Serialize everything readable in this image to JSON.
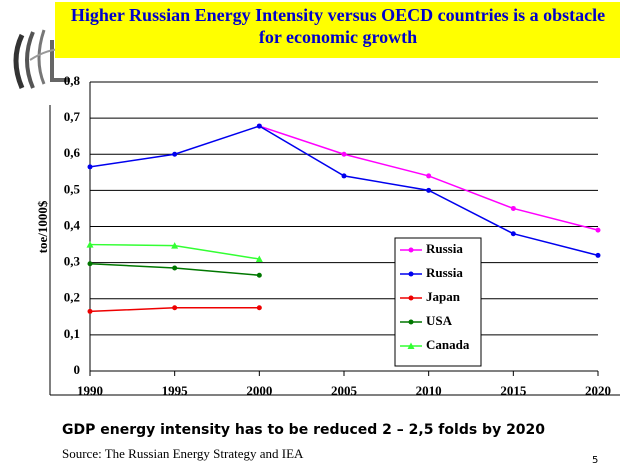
{
  "chart_data": {
    "type": "line",
    "title": "Higher Russian Energy Intensity versus  OECD countries is a obstacle for economic growth",
    "y_label": "toe/1000$",
    "x": [
      1990,
      1995,
      2000,
      2005,
      2010,
      2015,
      2020
    ],
    "xlim": [
      1990,
      2020
    ],
    "xticks": [
      1990,
      1995,
      2000,
      2005,
      2010,
      2015,
      2020
    ],
    "ylim": [
      0,
      0.8
    ],
    "yticks": [
      {
        "value": 0,
        "label": "0"
      },
      {
        "value": 0.1,
        "label": "0,1"
      },
      {
        "value": 0.2,
        "label": "0,2"
      },
      {
        "value": 0.3,
        "label": "0,3"
      },
      {
        "value": 0.4,
        "label": "0,4"
      },
      {
        "value": 0.5,
        "label": "0,5"
      },
      {
        "value": 0.6,
        "label": "0,6"
      },
      {
        "value": 0.7,
        "label": "0,7"
      },
      {
        "value": 0.8,
        "label": "0,8"
      }
    ],
    "grid": true,
    "series": [
      {
        "name": "Russia",
        "color": "#ff00ff",
        "marker": "circle",
        "values": [
          null,
          null,
          0.678,
          0.6,
          0.54,
          0.45,
          0.39
        ]
      },
      {
        "name": "Russia",
        "color": "#0000ee",
        "marker": "circle",
        "values": [
          0.565,
          0.6,
          0.678,
          0.54,
          0.5,
          0.38,
          0.32
        ]
      },
      {
        "name": "Japan",
        "color": "#ee0000",
        "marker": "circle",
        "values": [
          0.165,
          0.175,
          0.175,
          null,
          null,
          null,
          null
        ]
      },
      {
        "name": "USA",
        "color": "#007700",
        "marker": "circle",
        "values": [
          0.297,
          0.285,
          0.265,
          null,
          null,
          null,
          null
        ]
      },
      {
        "name": "Canada",
        "color": "#33ff33",
        "marker": "triangle",
        "values": [
          0.35,
          0.347,
          0.31,
          null,
          null,
          null,
          null
        ]
      }
    ]
  },
  "slide": {
    "footer": "GDP energy intensity has to be reduced 2 – 2,5 folds by 2020",
    "source": "Source: The Russian Energy Strategy and IEA",
    "page_number": "5"
  }
}
